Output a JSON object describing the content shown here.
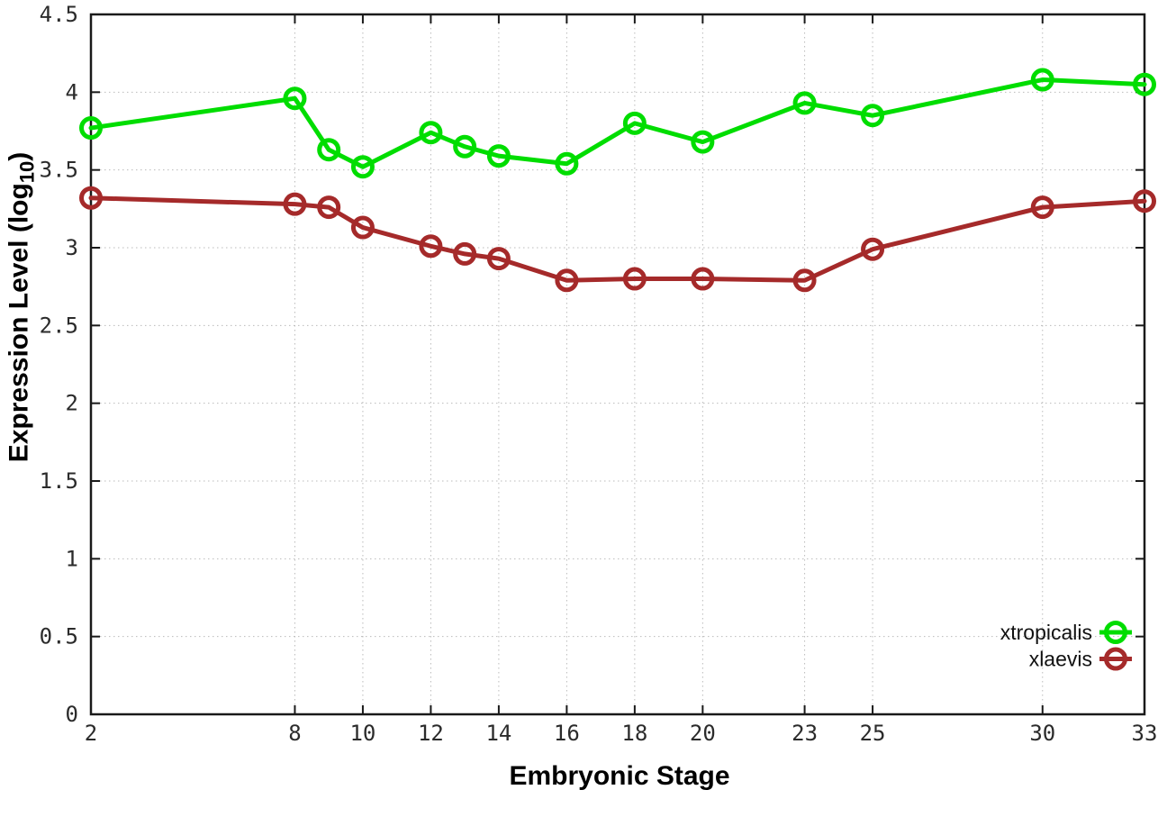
{
  "labels": {
    "y_prefix": "Expression Level (log",
    "y_sub": "10",
    "y_suffix": ")",
    "x": "Embryonic Stage"
  },
  "chart_data": {
    "type": "line",
    "title": "",
    "xlabel": "Embryonic Stage",
    "ylabel": "Expression Level (log10)",
    "x": [
      2,
      8,
      9,
      10,
      12,
      13,
      14,
      16,
      18,
      20,
      23,
      25,
      30,
      33
    ],
    "series": [
      {
        "name": "xtropicalis",
        "color": "#00dd00",
        "values": [
          3.77,
          3.96,
          3.63,
          3.52,
          3.74,
          3.65,
          3.59,
          3.54,
          3.8,
          3.68,
          3.93,
          3.85,
          4.08,
          4.05
        ]
      },
      {
        "name": "xlaevis",
        "color": "#a52a2a",
        "values": [
          3.32,
          3.28,
          3.26,
          3.13,
          3.01,
          2.96,
          2.93,
          2.79,
          2.8,
          2.8,
          2.79,
          2.99,
          3.26,
          3.3
        ]
      }
    ],
    "x_ticks": [
      2,
      8,
      10,
      12,
      14,
      16,
      18,
      20,
      23,
      25,
      30,
      33
    ],
    "y_ticks": [
      0,
      0.5,
      1,
      1.5,
      2,
      2.5,
      3,
      3.5,
      4,
      4.5
    ],
    "xlim": [
      2,
      33
    ],
    "ylim": [
      0,
      4.5
    ],
    "grid": true,
    "legend_position": "bottom-right",
    "style": {
      "grid_color": "#bbbbbb",
      "axis_color": "#1a1a1a",
      "marker": "open-circle"
    }
  }
}
